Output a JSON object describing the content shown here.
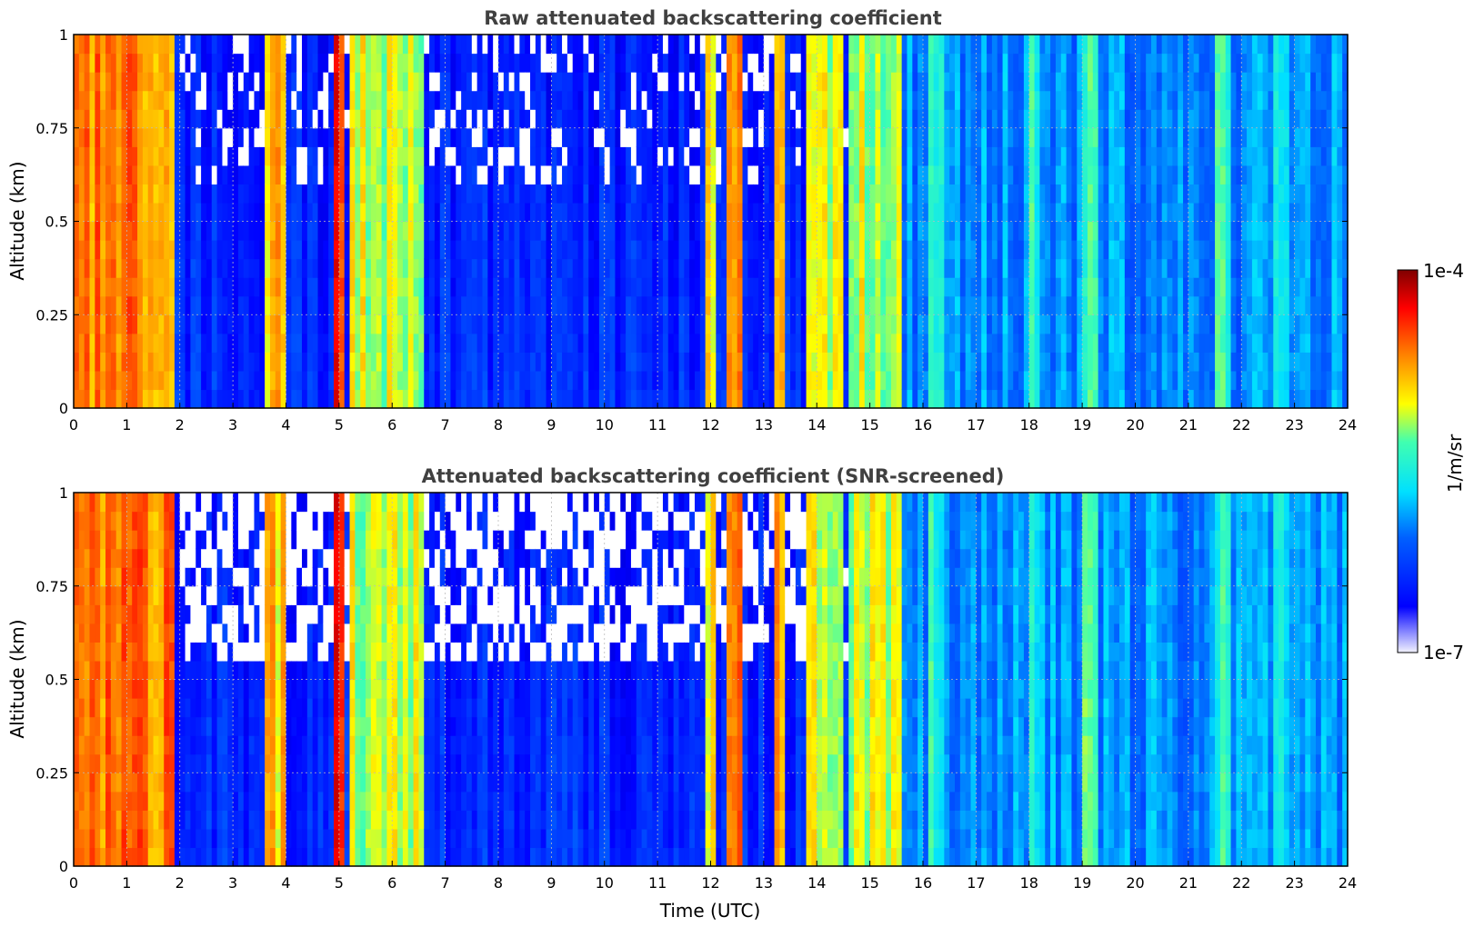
{
  "chart_data": [
    {
      "type": "heatmap",
      "title": "Raw attenuated backscattering coefficient",
      "xlabel": "",
      "ylabel": "Altitude (km)",
      "xlim": [
        0,
        24
      ],
      "ylim": [
        0,
        1
      ],
      "x_ticks": [
        0,
        1,
        2,
        3,
        4,
        5,
        6,
        7,
        8,
        9,
        10,
        11,
        12,
        13,
        14,
        15,
        16,
        17,
        18,
        19,
        20,
        21,
        22,
        23,
        24
      ],
      "y_ticks": [
        0,
        0.25,
        0.5,
        0.75,
        1
      ],
      "y_tick_labels": [
        "0",
        "0.25",
        "0.5",
        "0.75",
        "1"
      ],
      "grid": true,
      "colormap": "jet",
      "color_scale": "log",
      "snr_screened": false
    },
    {
      "type": "heatmap",
      "title": "Attenuated backscattering coefficient (SNR-screened)",
      "xlabel": "Time (UTC)",
      "ylabel": "Altitude (km)",
      "xlim": [
        0,
        24
      ],
      "ylim": [
        0,
        1
      ],
      "x_ticks": [
        0,
        1,
        2,
        3,
        4,
        5,
        6,
        7,
        8,
        9,
        10,
        11,
        12,
        13,
        14,
        15,
        16,
        17,
        18,
        19,
        20,
        21,
        22,
        23,
        24
      ],
      "y_ticks": [
        0,
        0.25,
        0.5,
        0.75,
        1
      ],
      "y_tick_labels": [
        "0",
        "0.25",
        "0.5",
        "0.75",
        "1"
      ],
      "grid": true,
      "colormap": "jet",
      "color_scale": "log",
      "snr_screened": true
    }
  ],
  "colorbar": {
    "label": "1/m/sr",
    "max_label": "1e-4",
    "min_label": "1e-7",
    "min": 1e-07,
    "max": 0.0001,
    "scale": "log",
    "colors": [
      "#e6e6fa",
      "#0000ff",
      "#00ffff",
      "#ffff00",
      "#ff0000",
      "#800000"
    ]
  }
}
